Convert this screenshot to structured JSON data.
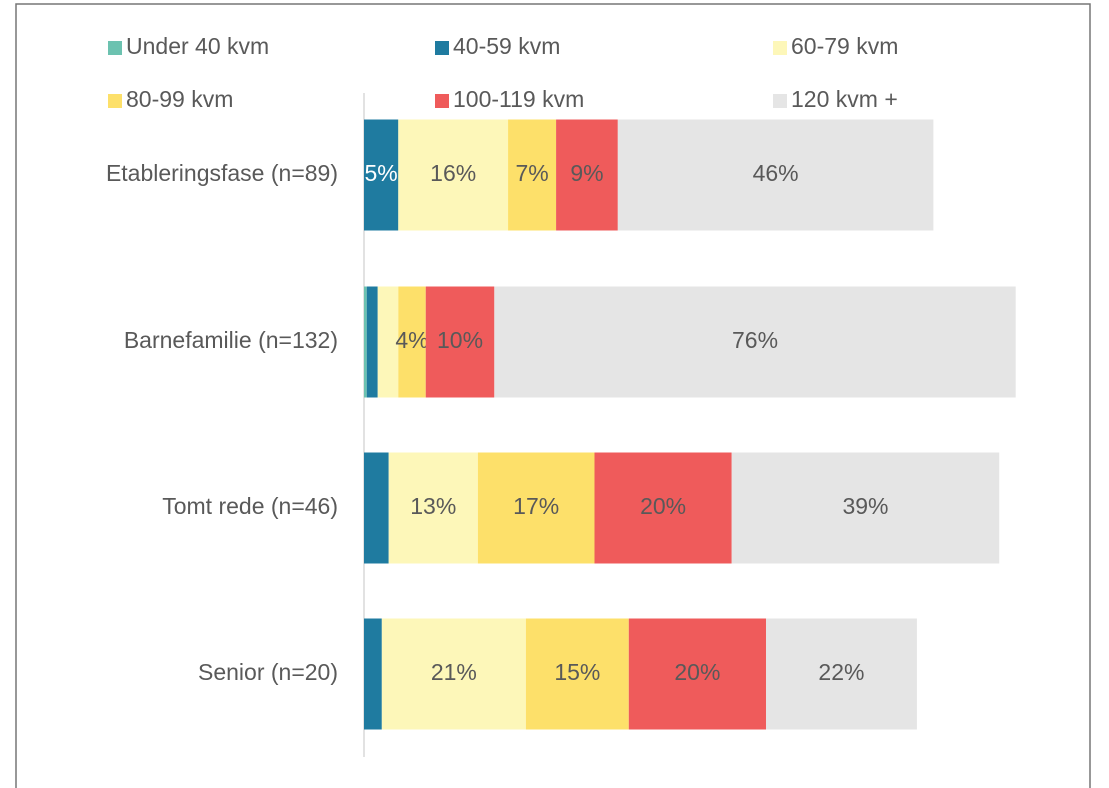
{
  "chart_data": {
    "type": "stacked_bar_horizontal",
    "categories": [
      "Etableringsfase (n=89)",
      "Barnefamilie (n=132)",
      "Tomt rede (n=46)",
      "Senior (n=20)"
    ],
    "series": [
      {
        "name": "Under 40 kvm",
        "color": "#6cc2b0",
        "values": [
          0,
          0.4,
          0,
          0
        ],
        "value_labels": [
          null,
          null,
          null,
          null
        ]
      },
      {
        "name": "40-59 kvm",
        "color": "#1f7ba0",
        "values": [
          5,
          1.6,
          3.6,
          2.6
        ],
        "value_labels": [
          "5%",
          null,
          null,
          null
        ]
      },
      {
        "name": "60-79 kvm",
        "color": "#fdf7b9",
        "values": [
          16,
          3,
          13,
          21
        ],
        "value_labels": [
          "16%",
          null,
          "13%",
          "21%"
        ]
      },
      {
        "name": "80-99 kvm",
        "color": "#fde06a",
        "values": [
          7,
          4,
          17,
          15
        ],
        "value_labels": [
          "7%",
          "4%",
          "17%",
          "15%"
        ]
      },
      {
        "name": "100-119 kvm",
        "color": "#ef5b5b",
        "values": [
          9,
          10,
          20,
          20
        ],
        "value_labels": [
          "9%",
          "10%",
          "20%",
          "20%"
        ]
      },
      {
        "name": "120 kvm +",
        "color": "#e5e5e5",
        "values": [
          46,
          76,
          39,
          22
        ],
        "value_labels": [
          "46%",
          "76%",
          "39%",
          "22%"
        ]
      }
    ],
    "xlim": [
      0,
      100
    ],
    "legend": "top"
  }
}
